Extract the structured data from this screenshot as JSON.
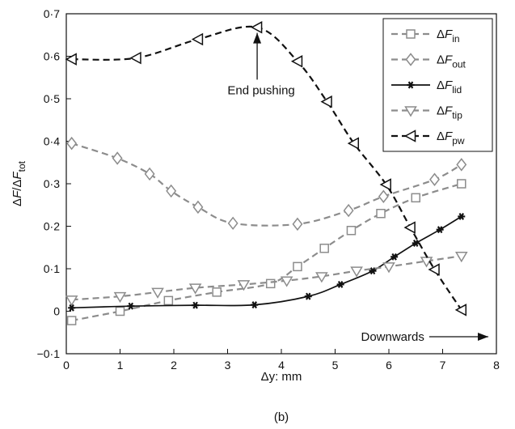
{
  "chart_data": {
    "type": "line",
    "title": "",
    "xlabel": {
      "symbol": "Δy",
      "unit": ": mm"
    },
    "ylabel": {
      "num_prefix": "Δ",
      "num_var": "F",
      "sep": "/Δ",
      "den_var": "F",
      "den_sub": "tot"
    },
    "xlim": [
      0,
      8
    ],
    "ylim": [
      -0.1,
      0.7
    ],
    "xticks": [
      0,
      1,
      2,
      3,
      4,
      5,
      6,
      7,
      8
    ],
    "xtick_labels": [
      "0",
      "1",
      "2",
      "3",
      "4",
      "5",
      "6",
      "7",
      "8"
    ],
    "yticks": [
      -0.1,
      0,
      0.1,
      0.2,
      0.3,
      0.4,
      0.5,
      0.6,
      0.7
    ],
    "ytick_labels": [
      "−0·1",
      "0",
      "0·1",
      "0·2",
      "0·3",
      "0·4",
      "0·5",
      "0·6",
      "0·7"
    ],
    "grid": false,
    "legend_position": "top-right",
    "caption": "(b)",
    "series": [
      {
        "prefix": "Δ",
        "var": "F",
        "sub": "in",
        "marker": "square",
        "dash": "dashed",
        "color": "#8c8c8c",
        "x": [
          0.1,
          1.0,
          1.9,
          2.8,
          3.8,
          4.3,
          4.8,
          5.3,
          5.85,
          6.5,
          7.35
        ],
        "y": [
          -0.022,
          0.0,
          0.025,
          0.045,
          0.065,
          0.105,
          0.148,
          0.19,
          0.23,
          0.267,
          0.3
        ]
      },
      {
        "prefix": "Δ",
        "var": "F",
        "sub": "out",
        "marker": "diamond",
        "dash": "dashed",
        "color": "#8c8c8c",
        "x": [
          0.1,
          0.95,
          1.55,
          1.95,
          2.45,
          3.1,
          4.3,
          5.25,
          5.9,
          6.85,
          7.35
        ],
        "y": [
          0.395,
          0.36,
          0.323,
          0.283,
          0.245,
          0.207,
          0.205,
          0.237,
          0.27,
          0.31,
          0.345
        ]
      },
      {
        "prefix": "Δ",
        "var": "F",
        "sub": "lid",
        "marker": "asterisk",
        "dash": "solid",
        "color": "#111111",
        "x": [
          0.1,
          1.2,
          2.4,
          3.5,
          4.5,
          5.1,
          5.7,
          6.1,
          6.5,
          6.95,
          7.35
        ],
        "y": [
          0.008,
          0.012,
          0.014,
          0.015,
          0.035,
          0.063,
          0.095,
          0.128,
          0.16,
          0.192,
          0.223
        ]
      },
      {
        "prefix": "Δ",
        "var": "F",
        "sub": "tip",
        "marker": "triangle-down",
        "dash": "dashed",
        "color": "#8c8c8c",
        "x": [
          0.1,
          1.0,
          1.7,
          2.4,
          3.3,
          4.1,
          4.75,
          5.4,
          6.0,
          6.7,
          7.35
        ],
        "y": [
          0.027,
          0.035,
          0.045,
          0.055,
          0.063,
          0.072,
          0.082,
          0.095,
          0.105,
          0.118,
          0.13
        ]
      },
      {
        "prefix": "Δ",
        "var": "F",
        "sub": "pw",
        "marker": "triangle-left",
        "dash": "dashed",
        "color": "#111111",
        "x": [
          0.1,
          1.3,
          2.45,
          3.55,
          4.3,
          4.85,
          5.35,
          5.95,
          6.4,
          6.85,
          7.35
        ],
        "y": [
          0.593,
          0.596,
          0.64,
          0.668,
          0.588,
          0.493,
          0.395,
          0.298,
          0.197,
          0.098,
          0.003
        ]
      }
    ],
    "annotations": [
      {
        "text": "End pushing",
        "arrow_tip": [
          3.55,
          0.655
        ],
        "arrow_tail": [
          3.55,
          0.545
        ]
      },
      {
        "text": "Downwards",
        "arrow_tip": [
          7.85,
          -0.06
        ],
        "arrow_tail": [
          6.75,
          -0.06
        ]
      }
    ]
  }
}
